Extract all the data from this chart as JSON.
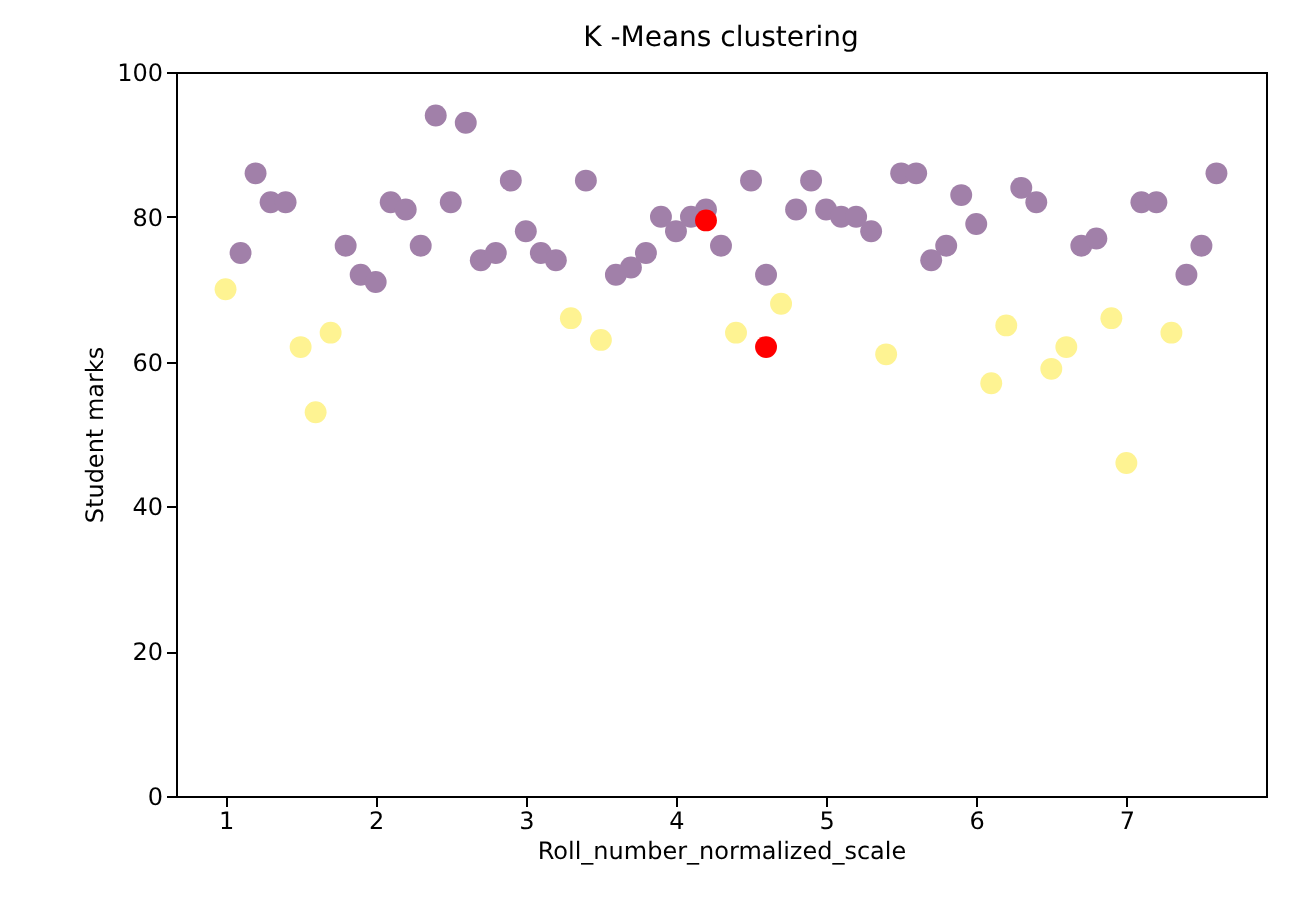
{
  "chart_data": {
    "type": "scatter",
    "title": "K -Means clustering",
    "xlabel": "Roll_number_normalized_scale",
    "ylabel": "Student marks",
    "xlim": [
      0.67,
      7.93
    ],
    "xticks": [
      1,
      2,
      3,
      4,
      5,
      6,
      7
    ],
    "ylim": [
      0,
      100
    ],
    "yticks": [
      0,
      20,
      40,
      60,
      80,
      100
    ],
    "grid": false,
    "legend": false,
    "marker": "circle",
    "series": [
      {
        "color": "#a180a9",
        "x": [
          1.1,
          1.2,
          1.3,
          1.4,
          1.8,
          1.9,
          2.0,
          2.1,
          2.2,
          2.3,
          2.4,
          2.5,
          2.6,
          2.7,
          2.8,
          2.9,
          3.0,
          3.1,
          3.2,
          3.4,
          3.6,
          3.7,
          3.8,
          3.9,
          4.0,
          4.1,
          4.2,
          4.3,
          4.5,
          4.6,
          4.8,
          4.9,
          5.0,
          5.1,
          5.2,
          5.3,
          5.5,
          5.6,
          5.7,
          5.8,
          5.9,
          6.0,
          6.3,
          6.4,
          6.7,
          6.8,
          7.1,
          7.2,
          7.4,
          7.5,
          7.6
        ],
        "values": [
          75,
          86,
          82,
          82,
          76,
          72,
          71,
          82,
          81,
          76,
          94,
          82,
          93,
          74,
          75,
          85,
          78,
          75,
          74,
          85,
          72,
          73,
          75,
          80,
          78,
          80,
          81,
          76,
          85,
          72,
          81,
          85,
          81,
          80,
          80,
          78,
          86,
          86,
          74,
          76,
          83,
          79,
          84,
          82,
          76,
          77,
          82,
          82,
          72,
          76,
          86
        ]
      },
      {
        "color": "#fef392",
        "x": [
          1.0,
          1.5,
          1.6,
          1.7,
          3.3,
          3.5,
          4.4,
          4.7,
          5.4,
          6.1,
          6.2,
          6.5,
          6.6,
          6.9,
          7.0,
          7.3
        ],
        "values": [
          70,
          62,
          53,
          64,
          66,
          63,
          64,
          68,
          61,
          57,
          65,
          59,
          62,
          66,
          46,
          64
        ]
      },
      {
        "color": "#ff0000",
        "x": [
          4.2,
          4.6
        ],
        "values": [
          79.5,
          62
        ]
      }
    ]
  }
}
